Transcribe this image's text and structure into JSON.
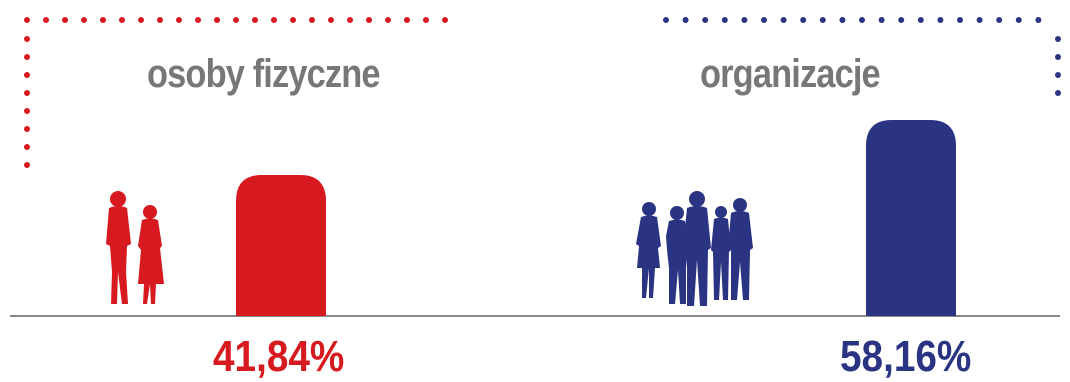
{
  "chart_data": {
    "type": "bar",
    "categories": [
      "osoby fizyczne",
      "organizacje"
    ],
    "values": [
      41.84,
      58.16
    ],
    "value_labels": [
      "41,84%",
      "58,16%"
    ],
    "colors": [
      "#d71920",
      "#2b3483"
    ],
    "axis_color": "#888888",
    "label_color": "#777777",
    "ylim": [
      0,
      60
    ],
    "grid": false,
    "legend": "none",
    "icons": [
      "couple-silhouette-icon",
      "group-silhouette-icon"
    ]
  }
}
